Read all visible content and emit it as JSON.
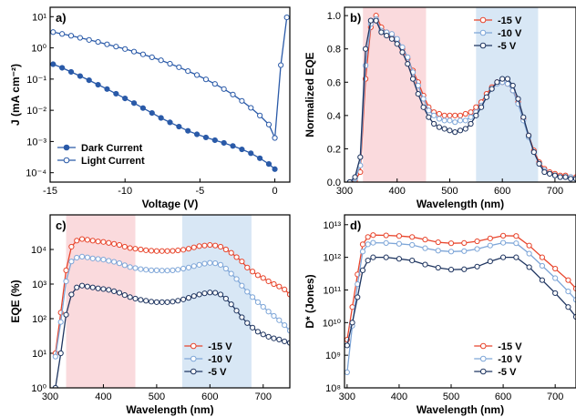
{
  "colors": {
    "red": "#e8452c",
    "lightblue": "#7ea6d8",
    "navy": "#1f3560",
    "blue": "#2a5aa8",
    "pink_band": "#fadadd",
    "blue_band": "#d8e7f5"
  },
  "chart_data": [
    {
      "id": "a",
      "panel_label": "a)",
      "type": "line",
      "xlabel": "Voltage (V)",
      "ylabel": "J (mA cm⁻²)",
      "xlim": [
        -15,
        1
      ],
      "ylim": [
        5e-05,
        20
      ],
      "yscale": "log",
      "xticks": [
        -15,
        -10,
        -5,
        0
      ],
      "yticks": [
        0.0001,
        0.001,
        0.01,
        0.1,
        1,
        10
      ],
      "ytick_labels": [
        "10⁻⁴",
        "10⁻³",
        "10⁻²",
        "10⁻¹",
        "10⁰",
        "10¹"
      ],
      "legend": "bottom-left",
      "series": [
        {
          "name": "Dark  Current",
          "filled": true,
          "x": [
            -14.8,
            -14.2,
            -13.6,
            -13,
            -12.4,
            -11.8,
            -11.2,
            -10.6,
            -10,
            -9.4,
            -8.8,
            -8.2,
            -7.6,
            -7,
            -6.4,
            -5.8,
            -5.2,
            -4.6,
            -4,
            -3.4,
            -2.8,
            -2.2,
            -1.6,
            -1,
            -0.4,
            0
          ],
          "y": [
            0.3,
            0.23,
            0.17,
            0.125,
            0.092,
            0.066,
            0.048,
            0.034,
            0.024,
            0.017,
            0.0118,
            0.0082,
            0.0057,
            0.0041,
            0.003,
            0.0022,
            0.0017,
            0.00135,
            0.0011,
            0.0009,
            0.00072,
            0.00056,
            0.00042,
            0.00029,
            0.00019,
            0.00013
          ]
        },
        {
          "name": "Light Current",
          "filled": false,
          "x": [
            -14.8,
            -14.2,
            -13.6,
            -13,
            -12.4,
            -11.8,
            -11.2,
            -10.6,
            -10,
            -9.4,
            -8.8,
            -8.2,
            -7.6,
            -7,
            -6.4,
            -5.8,
            -5.2,
            -4.6,
            -4,
            -3.4,
            -2.8,
            -2.2,
            -1.6,
            -1,
            -0.4,
            0,
            0.4,
            0.8
          ],
          "y": [
            3.2,
            2.8,
            2.45,
            2.1,
            1.8,
            1.55,
            1.3,
            1.1,
            0.92,
            0.76,
            0.62,
            0.5,
            0.4,
            0.31,
            0.24,
            0.18,
            0.135,
            0.098,
            0.07,
            0.048,
            0.032,
            0.02,
            0.012,
            0.0068,
            0.0035,
            0.0013,
            0.28,
            9.5
          ]
        }
      ]
    },
    {
      "id": "b",
      "panel_label": "b)",
      "type": "line",
      "xlabel": "Wavelength (nm)",
      "ylabel": "Normalized EQE",
      "xlim": [
        300,
        740
      ],
      "ylim": [
        0,
        1.05
      ],
      "xticks": [
        300,
        400,
        500,
        600,
        700
      ],
      "yticks": [
        0,
        0.2,
        0.4,
        0.6,
        0.8,
        1.0
      ],
      "ytick_labels": [
        "0.0",
        "0.2",
        "0.4",
        "0.6",
        "0.8",
        "1.0"
      ],
      "bands": [
        [
          335,
          455
        ],
        [
          550,
          668
        ]
      ],
      "legend": "top-right",
      "series": [
        {
          "name": "-15 V",
          "color": "red",
          "x": [
            310,
            320,
            330,
            340,
            350,
            360,
            370,
            380,
            390,
            400,
            410,
            420,
            430,
            440,
            450,
            460,
            470,
            480,
            490,
            500,
            510,
            520,
            530,
            540,
            550,
            560,
            570,
            580,
            590,
            600,
            610,
            620,
            630,
            640,
            650,
            660,
            670,
            680,
            690,
            700,
            710,
            720,
            730,
            740
          ],
          "y": [
            0,
            0.01,
            0.06,
            0.62,
            0.93,
            1.0,
            0.93,
            0.9,
            0.88,
            0.85,
            0.8,
            0.74,
            0.67,
            0.6,
            0.52,
            0.45,
            0.42,
            0.41,
            0.4,
            0.4,
            0.4,
            0.4,
            0.41,
            0.42,
            0.45,
            0.48,
            0.53,
            0.57,
            0.6,
            0.6,
            0.59,
            0.55,
            0.48,
            0.38,
            0.28,
            0.19,
            0.12,
            0.08,
            0.06,
            0.05,
            0.04,
            0.04,
            0.03,
            0.03
          ]
        },
        {
          "name": "-10 V",
          "color": "lightblue",
          "x": [
            310,
            320,
            330,
            340,
            350,
            360,
            370,
            380,
            390,
            400,
            410,
            420,
            430,
            440,
            450,
            460,
            470,
            480,
            490,
            500,
            510,
            520,
            530,
            540,
            550,
            560,
            570,
            580,
            590,
            600,
            610,
            620,
            630,
            640,
            650,
            660,
            670,
            680,
            690,
            700,
            710,
            720,
            730,
            740
          ],
          "y": [
            0,
            0.02,
            0.1,
            0.7,
            0.95,
            0.98,
            0.91,
            0.9,
            0.89,
            0.86,
            0.81,
            0.75,
            0.66,
            0.58,
            0.5,
            0.43,
            0.4,
            0.38,
            0.37,
            0.37,
            0.36,
            0.37,
            0.37,
            0.39,
            0.42,
            0.46,
            0.51,
            0.56,
            0.59,
            0.6,
            0.59,
            0.55,
            0.47,
            0.37,
            0.27,
            0.18,
            0.11,
            0.07,
            0.05,
            0.04,
            0.03,
            0.03,
            0.03,
            0.02
          ]
        },
        {
          "name": "-5  V",
          "color": "navy",
          "x": [
            310,
            320,
            330,
            340,
            350,
            360,
            370,
            380,
            390,
            400,
            410,
            420,
            430,
            440,
            450,
            460,
            470,
            480,
            490,
            500,
            510,
            520,
            530,
            540,
            550,
            560,
            570,
            580,
            590,
            600,
            610,
            620,
            630,
            640,
            650,
            660,
            670,
            680,
            690,
            700,
            710,
            720,
            730,
            740
          ],
          "y": [
            0,
            0.03,
            0.15,
            0.8,
            0.97,
            0.97,
            0.9,
            0.88,
            0.86,
            0.83,
            0.78,
            0.71,
            0.62,
            0.53,
            0.45,
            0.39,
            0.35,
            0.33,
            0.32,
            0.31,
            0.3,
            0.31,
            0.32,
            0.35,
            0.4,
            0.45,
            0.51,
            0.56,
            0.6,
            0.62,
            0.62,
            0.58,
            0.5,
            0.39,
            0.28,
            0.18,
            0.11,
            0.06,
            0.05,
            0.04,
            0.03,
            0.03,
            0.02,
            0.02
          ]
        }
      ]
    },
    {
      "id": "c",
      "panel_label": "c)",
      "type": "line",
      "xlabel": "Wavelength (nm)",
      "ylabel": "EQE (%)",
      "xlim": [
        300,
        750
      ],
      "ylim": [
        1,
        100000
      ],
      "yscale": "log",
      "xticks": [
        300,
        400,
        500,
        600,
        700
      ],
      "yticks": [
        1,
        10,
        100,
        1000,
        10000
      ],
      "ytick_labels": [
        "10⁰",
        "10¹",
        "10²",
        "10³",
        "10⁴"
      ],
      "bands": [
        [
          330,
          460
        ],
        [
          548,
          678
        ]
      ],
      "legend": "bottom-right",
      "series": [
        {
          "name": "-15 V",
          "color": "red",
          "x": [
            310,
            320,
            330,
            340,
            350,
            360,
            370,
            380,
            390,
            400,
            410,
            420,
            430,
            440,
            450,
            460,
            470,
            480,
            490,
            500,
            510,
            520,
            530,
            540,
            550,
            560,
            570,
            580,
            590,
            600,
            610,
            620,
            630,
            640,
            650,
            660,
            670,
            680,
            690,
            700,
            710,
            720,
            730,
            740,
            750
          ],
          "y": [
            10,
            150,
            2500,
            12000,
            18000,
            20000,
            19000,
            18000,
            17000,
            16500,
            15500,
            14500,
            13500,
            12000,
            11000,
            10500,
            10000,
            9500,
            9200,
            9000,
            9000,
            9000,
            9100,
            9400,
            9800,
            10500,
            11500,
            12500,
            13000,
            13500,
            13000,
            12000,
            10000,
            8000,
            6000,
            4500,
            3000,
            2300,
            1800,
            1500,
            1200,
            1000,
            850,
            700,
            500
          ]
        },
        {
          "name": "-10 V",
          "color": "lightblue",
          "x": [
            310,
            320,
            330,
            340,
            350,
            360,
            370,
            380,
            390,
            400,
            410,
            420,
            430,
            440,
            450,
            460,
            470,
            480,
            490,
            500,
            510,
            520,
            530,
            540,
            550,
            560,
            570,
            580,
            590,
            600,
            610,
            620,
            630,
            640,
            650,
            660,
            670,
            680,
            690,
            700,
            710,
            720,
            730,
            740,
            750
          ],
          "y": [
            8,
            80,
            1200,
            4500,
            5800,
            6200,
            5900,
            5500,
            5300,
            5100,
            4700,
            4400,
            4000,
            3500,
            3100,
            2900,
            2700,
            2600,
            2500,
            2500,
            2450,
            2450,
            2500,
            2600,
            2800,
            3000,
            3300,
            3600,
            3900,
            4100,
            4000,
            3600,
            2800,
            2000,
            1400,
            900,
            600,
            420,
            300,
            220,
            160,
            120,
            90,
            65,
            45
          ]
        },
        {
          "name": "-5  V",
          "color": "navy",
          "x": [
            310,
            320,
            330,
            340,
            350,
            360,
            370,
            380,
            390,
            400,
            410,
            420,
            430,
            440,
            450,
            460,
            470,
            480,
            490,
            500,
            510,
            520,
            530,
            540,
            550,
            560,
            570,
            580,
            590,
            600,
            610,
            620,
            630,
            640,
            650,
            660,
            670,
            680,
            690,
            700,
            710,
            720,
            730,
            740,
            750
          ],
          "y": [
            1,
            10,
            130,
            500,
            800,
            900,
            850,
            800,
            750,
            720,
            680,
            620,
            560,
            480,
            420,
            380,
            350,
            330,
            310,
            300,
            300,
            300,
            310,
            330,
            360,
            400,
            450,
            500,
            540,
            570,
            560,
            500,
            380,
            260,
            170,
            110,
            75,
            55,
            42,
            35,
            30,
            27,
            25,
            22,
            20
          ]
        }
      ]
    },
    {
      "id": "d",
      "panel_label": "d)",
      "type": "line",
      "xlabel": "Wavelength (nm)",
      "ylabel": "D* (Jones)",
      "xlim": [
        295,
        740
      ],
      "ylim": [
        100000000,
        20000000000000
      ],
      "yscale": "log",
      "xticks": [
        300,
        400,
        500,
        600,
        700
      ],
      "yticks": [
        100000000,
        1000000000,
        10000000000,
        100000000000,
        1000000000000,
        10000000000000
      ],
      "ytick_labels": [
        "10⁸",
        "10⁹",
        "10¹⁰",
        "10¹¹",
        "10¹²",
        "10¹³"
      ],
      "legend": "bottom-right",
      "series": [
        {
          "name": "-15 V",
          "color": "red",
          "x": [
            300,
            310,
            320,
            330,
            340,
            350,
            375,
            400,
            425,
            450,
            475,
            500,
            525,
            550,
            575,
            600,
            625,
            650,
            675,
            700,
            725,
            740
          ],
          "y": [
            3000000000,
            30000000000,
            300000000000,
            2500000000000,
            4200000000000,
            4800000000000,
            4700000000000,
            4500000000000,
            4200000000000,
            3500000000000,
            2900000000000,
            2700000000000,
            2750000000000,
            3100000000000,
            3800000000000,
            4600000000000,
            4500000000000,
            2300000000000,
            1000000000000,
            450000000000,
            200000000000,
            110000000000
          ]
        },
        {
          "name": "-10 V",
          "color": "lightblue",
          "x": [
            300,
            310,
            320,
            330,
            340,
            350,
            375,
            400,
            425,
            450,
            475,
            500,
            525,
            550,
            575,
            600,
            625,
            650,
            675,
            700,
            725,
            740
          ],
          "y": [
            300000000,
            8000000000,
            150000000000,
            1500000000000,
            2500000000000,
            2800000000000,
            2750000000000,
            2600000000000,
            2400000000000,
            1900000000000,
            1600000000000,
            1500000000000,
            1550000000000,
            1800000000000,
            2300000000000,
            2800000000000,
            2700000000000,
            1300000000000,
            550000000000,
            230000000000,
            90000000000,
            50000000000
          ]
        },
        {
          "name": "-5  V",
          "color": "navy",
          "x": [
            300,
            310,
            320,
            330,
            340,
            350,
            375,
            400,
            425,
            450,
            475,
            500,
            525,
            550,
            575,
            600,
            625,
            650,
            675,
            700,
            725,
            740
          ],
          "y": [
            2000000000,
            10000000000,
            60000000000,
            400000000000,
            800000000000,
            1000000000000,
            1000000000000,
            900000000000,
            800000000000,
            600000000000,
            480000000000,
            420000000000,
            430000000000,
            520000000000,
            750000000000,
            1000000000000,
            1000000000000,
            500000000000,
            200000000000,
            80000000000,
            30000000000,
            15000000000
          ]
        }
      ]
    }
  ]
}
